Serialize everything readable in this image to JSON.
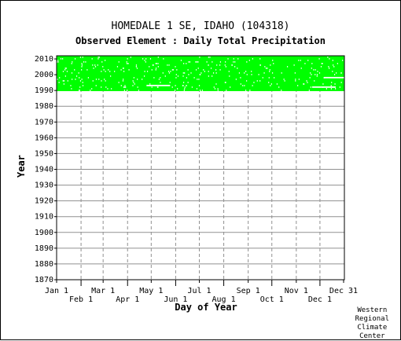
{
  "header": {
    "title": "HOMEDALE 1 SE, IDAHO   (104318)",
    "subtitle": "Observed Element : Daily Total Precipitation"
  },
  "credit": "Western\nRegional\nClimate\nCenter",
  "colors": {
    "data": "#00ff00",
    "grid_solid": "#909090",
    "grid_dashed": "#909090",
    "axis": "#000000",
    "gap": "#ffffff"
  },
  "chart_data": {
    "type": "heatmap",
    "xlabel": "Day of Year",
    "ylabel": "Year",
    "xlim": [
      1,
      366
    ],
    "ylim": [
      1870,
      2012
    ],
    "grid": true,
    "x_ticks_upper": [
      {
        "label": "Jan 1",
        "day": 1
      },
      {
        "label": "Mar 1",
        "day": 60
      },
      {
        "label": "May 1",
        "day": 121
      },
      {
        "label": "Jul 1",
        "day": 182
      },
      {
        "label": "Sep 1",
        "day": 244
      },
      {
        "label": "Nov 1",
        "day": 305
      },
      {
        "label": "Dec 31",
        "day": 365
      }
    ],
    "x_ticks_lower": [
      {
        "label": "Feb 1",
        "day": 32
      },
      {
        "label": "Apr 1",
        "day": 91
      },
      {
        "label": "Jun 1",
        "day": 152
      },
      {
        "label": "Aug 1",
        "day": 213
      },
      {
        "label": "Oct 1",
        "day": 274
      },
      {
        "label": "Dec 1",
        "day": 335
      }
    ],
    "y_ticks": [
      "1870",
      "1880",
      "1890",
      "1900",
      "1910",
      "1920",
      "1930",
      "1940",
      "1950",
      "1960",
      "1970",
      "1980",
      "1990",
      "2000",
      "2010"
    ],
    "coverage": {
      "year_start": 1990,
      "year_end": 2011,
      "day_start": 1,
      "day_end": 366
    },
    "gaps": [
      {
        "year": 1993,
        "day_start": 115,
        "day_end": 145
      },
      {
        "year": 1992,
        "day_start": 325,
        "day_end": 355
      },
      {
        "year": 1998,
        "day_start": 340,
        "day_end": 366
      }
    ]
  }
}
